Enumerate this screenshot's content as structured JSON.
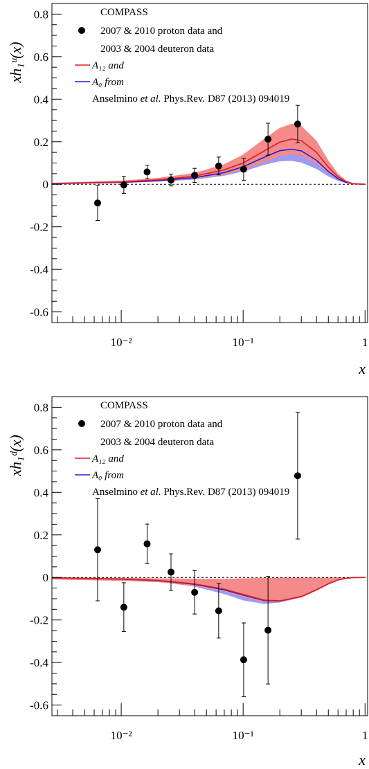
{
  "colors": {
    "a12_line": "#e41a1c",
    "a12_band": "#f48a8a",
    "a0_line": "#1f1fd6",
    "a0_band": "#9c9cf2",
    "points": "#000000",
    "zero_line": "#000000"
  },
  "chart_data": [
    {
      "type": "scatter",
      "ylabel": "xh₁ᵘ(x)",
      "xlabel": "x",
      "xscale": "log",
      "xlim": [
        0.0027,
        1.05
      ],
      "ylim": [
        -0.65,
        0.85
      ],
      "yticks": [
        "-0.6",
        "-0.4",
        "-0.2",
        "0",
        "0.2",
        "0.4",
        "0.6",
        "0.8"
      ],
      "xticks": [
        "10⁻²",
        "10⁻¹",
        "1"
      ],
      "legend_position": "top-left",
      "legend": {
        "title": "COMPASS",
        "points_line1": "2007 & 2010 proton data and",
        "points_line2": "2003 & 2004 deuteron data",
        "a12_label": "A₁₂ and",
        "a0_label": "A₀ from",
        "ref_prefix": "Anselmino ",
        "ref_italic": "et al.",
        "ref_suffix": "  Phys.Rev. D87 (2013) 094019"
      },
      "series": [
        {
          "name": "COMPASS",
          "kind": "points",
          "x": [
            0.0064,
            0.0105,
            0.0163,
            0.0256,
            0.04,
            0.063,
            0.101,
            0.16,
            0.28
          ],
          "y": [
            -0.088,
            -0.003,
            0.058,
            0.02,
            0.042,
            0.086,
            0.071,
            0.212,
            0.283
          ],
          "yerr": [
            0.082,
            0.04,
            0.032,
            0.028,
            0.033,
            0.042,
            0.052,
            0.075,
            0.088
          ]
        },
        {
          "name": "A12",
          "kind": "band",
          "x": [
            0.0027,
            0.01,
            0.02,
            0.04,
            0.07,
            0.1,
            0.15,
            0.2,
            0.25,
            0.3,
            0.4,
            0.5,
            0.6,
            0.7,
            0.8,
            1.0
          ],
          "y": [
            0.004,
            0.011,
            0.021,
            0.038,
            0.068,
            0.1,
            0.158,
            0.198,
            0.213,
            0.205,
            0.15,
            0.08,
            0.035,
            0.012,
            0.003,
            0.0
          ],
          "y_low": [
            0.002,
            0.006,
            0.013,
            0.025,
            0.045,
            0.066,
            0.105,
            0.132,
            0.142,
            0.135,
            0.098,
            0.053,
            0.023,
            0.008,
            0.002,
            0.0
          ],
          "y_high": [
            0.007,
            0.017,
            0.03,
            0.053,
            0.094,
            0.14,
            0.215,
            0.265,
            0.285,
            0.275,
            0.205,
            0.112,
            0.05,
            0.018,
            0.005,
            0.0
          ]
        },
        {
          "name": "A0",
          "kind": "band",
          "x": [
            0.0027,
            0.01,
            0.02,
            0.04,
            0.07,
            0.1,
            0.15,
            0.2,
            0.25,
            0.3,
            0.4,
            0.5,
            0.6,
            0.7,
            0.8,
            1.0
          ],
          "y": [
            0.003,
            0.009,
            0.017,
            0.031,
            0.055,
            0.082,
            0.128,
            0.158,
            0.165,
            0.157,
            0.113,
            0.06,
            0.026,
            0.009,
            0.002,
            0.0
          ],
          "y_low": [
            0.002,
            0.006,
            0.012,
            0.022,
            0.04,
            0.06,
            0.092,
            0.108,
            0.11,
            0.102,
            0.072,
            0.037,
            0.016,
            0.005,
            0.001,
            0.0
          ],
          "y_high": [
            0.004,
            0.011,
            0.021,
            0.037,
            0.064,
            0.094,
            0.142,
            0.172,
            0.178,
            0.17,
            0.124,
            0.066,
            0.029,
            0.01,
            0.002,
            0.0
          ]
        }
      ]
    },
    {
      "type": "scatter",
      "ylabel": "xh₁ᵈ(x)",
      "xlabel": "x",
      "xscale": "log",
      "xlim": [
        0.0027,
        1.05
      ],
      "ylim": [
        -0.65,
        0.85
      ],
      "yticks": [
        "-0.6",
        "-0.4",
        "-0.2",
        "0",
        "0.2",
        "0.4",
        "0.6",
        "0.8"
      ],
      "xticks": [
        "10⁻²",
        "10⁻¹",
        "1"
      ],
      "legend_position": "top-left",
      "legend": {
        "title": "COMPASS",
        "points_line1": "2007 & 2010 proton data and",
        "points_line2": "2003 & 2004 deuteron data",
        "a12_label": "A₁₂ and",
        "a0_label": "A₀ from",
        "ref_prefix": "Anselmino ",
        "ref_italic": "et al.",
        "ref_suffix": "  Phys.Rev. D87 (2013) 094019"
      },
      "series": [
        {
          "name": "COMPASS",
          "kind": "points",
          "x": [
            0.0064,
            0.0105,
            0.0163,
            0.0256,
            0.04,
            0.063,
            0.101,
            0.16,
            0.28
          ],
          "y": [
            0.13,
            -0.14,
            0.158,
            0.025,
            -0.07,
            -0.157,
            -0.387,
            -0.248,
            0.478
          ],
          "yerr": [
            0.24,
            0.115,
            0.093,
            0.086,
            0.102,
            0.128,
            0.173,
            0.253,
            0.298
          ]
        },
        {
          "name": "A12",
          "kind": "band",
          "x": [
            0.0027,
            0.01,
            0.02,
            0.04,
            0.07,
            0.1,
            0.15,
            0.2,
            0.3,
            0.4,
            0.5,
            0.6,
            0.7,
            0.8,
            1.0
          ],
          "y": [
            -0.002,
            -0.007,
            -0.014,
            -0.03,
            -0.055,
            -0.08,
            -0.107,
            -0.11,
            -0.09,
            -0.058,
            -0.03,
            -0.012,
            -0.004,
            -0.001,
            0.0
          ],
          "y_low": [
            -0.01,
            -0.016,
            -0.022,
            -0.04,
            -0.063,
            -0.09,
            -0.115,
            -0.115,
            -0.095,
            -0.062,
            -0.033,
            -0.014,
            -0.005,
            -0.001,
            0.0
          ],
          "y_high": [
            0.0,
            -0.002,
            -0.004,
            -0.006,
            -0.006,
            -0.004,
            -0.002,
            -0.001,
            -0.001,
            -0.001,
            0.0,
            0.0,
            0.0,
            0.0,
            0.0
          ]
        },
        {
          "name": "A0",
          "kind": "band",
          "x": [
            0.0027,
            0.01,
            0.02,
            0.04,
            0.07,
            0.1,
            0.15,
            0.2,
            0.3,
            0.4,
            0.5,
            0.6,
            0.7,
            0.8,
            1.0
          ],
          "y": [
            -0.002,
            -0.008,
            -0.015,
            -0.032,
            -0.058,
            -0.083,
            -0.109,
            -0.111,
            -0.09,
            -0.058,
            -0.03,
            -0.012,
            -0.004,
            -0.001,
            0.0
          ],
          "y_low": [
            -0.003,
            -0.01,
            -0.02,
            -0.043,
            -0.078,
            -0.108,
            -0.125,
            -0.118,
            -0.094,
            -0.06,
            -0.031,
            -0.013,
            -0.004,
            -0.001,
            0.0
          ],
          "y_high": [
            -0.001,
            -0.006,
            -0.011,
            -0.025,
            -0.046,
            -0.068,
            -0.098,
            -0.106,
            -0.088,
            -0.057,
            -0.029,
            -0.011,
            -0.004,
            -0.001,
            0.0
          ]
        }
      ]
    }
  ]
}
